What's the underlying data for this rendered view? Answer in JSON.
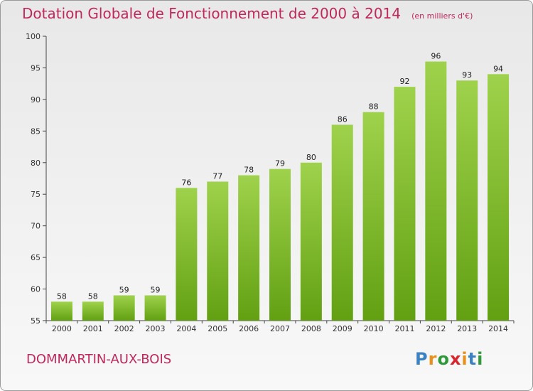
{
  "chart_data": {
    "type": "bar",
    "title": "Dotation Globale de Fonctionnement de 2000 à 2014",
    "subtitle": "(en milliers d'€)",
    "categories": [
      "2000",
      "2001",
      "2002",
      "2003",
      "2004",
      "2005",
      "2006",
      "2007",
      "2008",
      "2009",
      "2010",
      "2011",
      "2012",
      "2013",
      "2014"
    ],
    "values": [
      58,
      58,
      59,
      59,
      76,
      77,
      78,
      79,
      80,
      86,
      88,
      92,
      96,
      93,
      94
    ],
    "ylim": [
      55,
      100
    ],
    "yticks": [
      55,
      60,
      65,
      70,
      75,
      80,
      85,
      90,
      95,
      100
    ],
    "grid": false,
    "xlabel": "",
    "ylabel": "",
    "colors": {
      "bar_light": "#9fd24c",
      "bar_dark": "#62a012"
    }
  },
  "footer": {
    "commune": "DOMMARTIN-AUX-BOIS",
    "logo_letters": [
      "P",
      "r",
      "o",
      "x",
      "i",
      "t",
      "i"
    ],
    "logo_colors": [
      "#3a82c4",
      "#e8901c",
      "#2f9a3a",
      "#d8262e",
      "#e8901c",
      "#3a82c4",
      "#2f9a3a"
    ]
  },
  "colors": {
    "accent": "#c0285a"
  }
}
